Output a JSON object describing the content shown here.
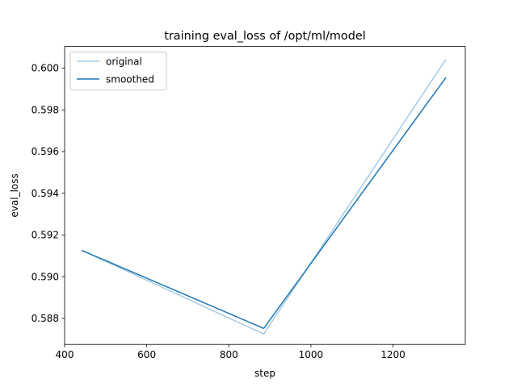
{
  "chart_data": {
    "type": "line",
    "title": "training eval_loss of /opt/ml/model",
    "xlabel": "step",
    "ylabel": "eval_loss",
    "xlim": [
      400,
      1376
    ],
    "ylim": [
      0.58675,
      0.60104
    ],
    "xticks": [
      400,
      600,
      800,
      1000,
      1200
    ],
    "xtick_labels": [
      "400",
      "600",
      "800",
      "1000",
      "1200"
    ],
    "yticks": [
      0.588,
      0.59,
      0.592,
      0.594,
      0.596,
      0.598,
      0.6
    ],
    "ytick_labels": [
      "0.588",
      "0.590",
      "0.592",
      "0.594",
      "0.596",
      "0.598",
      "0.600"
    ],
    "grid": false,
    "legend_position": "upper left",
    "series": [
      {
        "name": "original",
        "color": "#a6cbe3",
        "x": [
          443,
          885,
          1328
        ],
        "y": [
          0.59125,
          0.58725,
          0.6004
        ]
      },
      {
        "name": "smoothed",
        "color": "#1f77b4",
        "x": [
          443,
          885,
          1328
        ],
        "y": [
          0.59125,
          0.58752,
          0.59953
        ]
      }
    ]
  }
}
